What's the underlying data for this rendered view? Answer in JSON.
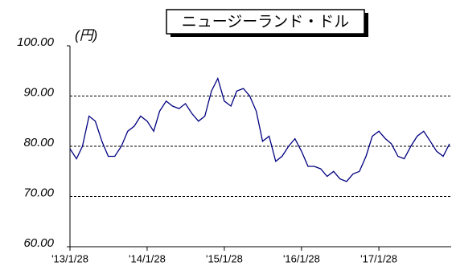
{
  "chart_data": {
    "type": "line",
    "title": "ニュージーランド・ドル",
    "y_label": "(円)",
    "x": [
      "2013-01-28",
      "2013-02-28",
      "2013-03-28",
      "2013-04-28",
      "2013-05-28",
      "2013-06-28",
      "2013-07-28",
      "2013-08-28",
      "2013-09-28",
      "2013-10-28",
      "2013-11-28",
      "2013-12-28",
      "2014-01-28",
      "2014-02-28",
      "2014-03-28",
      "2014-04-28",
      "2014-05-28",
      "2014-06-28",
      "2014-07-28",
      "2014-08-28",
      "2014-09-28",
      "2014-10-28",
      "2014-11-28",
      "2014-12-28",
      "2015-01-28",
      "2015-02-28",
      "2015-03-28",
      "2015-04-28",
      "2015-05-28",
      "2015-06-28",
      "2015-07-28",
      "2015-08-28",
      "2015-09-28",
      "2015-10-28",
      "2015-11-28",
      "2015-12-28",
      "2016-01-28",
      "2016-02-28",
      "2016-03-28",
      "2016-04-28",
      "2016-05-28",
      "2016-06-28",
      "2016-07-28",
      "2016-08-28",
      "2016-09-28",
      "2016-10-28",
      "2016-11-28",
      "2016-12-28",
      "2017-01-28",
      "2017-02-28",
      "2017-03-28",
      "2017-04-28",
      "2017-05-28",
      "2017-06-28",
      "2017-07-28",
      "2017-08-28",
      "2017-09-28",
      "2017-10-28",
      "2017-11-28",
      "2017-12-28"
    ],
    "series": [
      {
        "color": "#000080",
        "values": [
          79.5,
          77.5,
          80,
          86,
          85,
          81,
          78,
          78,
          80,
          83,
          84,
          86,
          85,
          83,
          87,
          89,
          88,
          87.5,
          88.5,
          86.5,
          85,
          86,
          91,
          93.5,
          89,
          88,
          91,
          91.5,
          90,
          87,
          81,
          82,
          77,
          78,
          80,
          81.5,
          79,
          76,
          76,
          75.5,
          74,
          75,
          73.5,
          73,
          74.5,
          75,
          78,
          82,
          83,
          81.5,
          80.5,
          78,
          77.5,
          80,
          82,
          83,
          81,
          79,
          78,
          80.5
        ]
      }
    ],
    "xlim": [
      "2013-01-28",
      "2018-01-05"
    ],
    "xticks": [
      {
        "value": "2013-01-28",
        "label": "'13/1/28"
      },
      {
        "value": "2014-01-28",
        "label": "'14/1/28"
      },
      {
        "value": "2015-01-28",
        "label": "'15/1/28"
      },
      {
        "value": "2016-01-28",
        "label": "'16/1/28"
      },
      {
        "value": "2017-01-28",
        "label": "'17/1/28"
      }
    ],
    "ylim": [
      60,
      100
    ],
    "yticks": [
      {
        "value": 60,
        "label": "60.00"
      },
      {
        "value": 70,
        "label": "70.00"
      },
      {
        "value": 80,
        "label": "80.00"
      },
      {
        "value": 90,
        "label": "90.00"
      },
      {
        "value": 100,
        "label": "100.00"
      }
    ],
    "grid": true
  }
}
